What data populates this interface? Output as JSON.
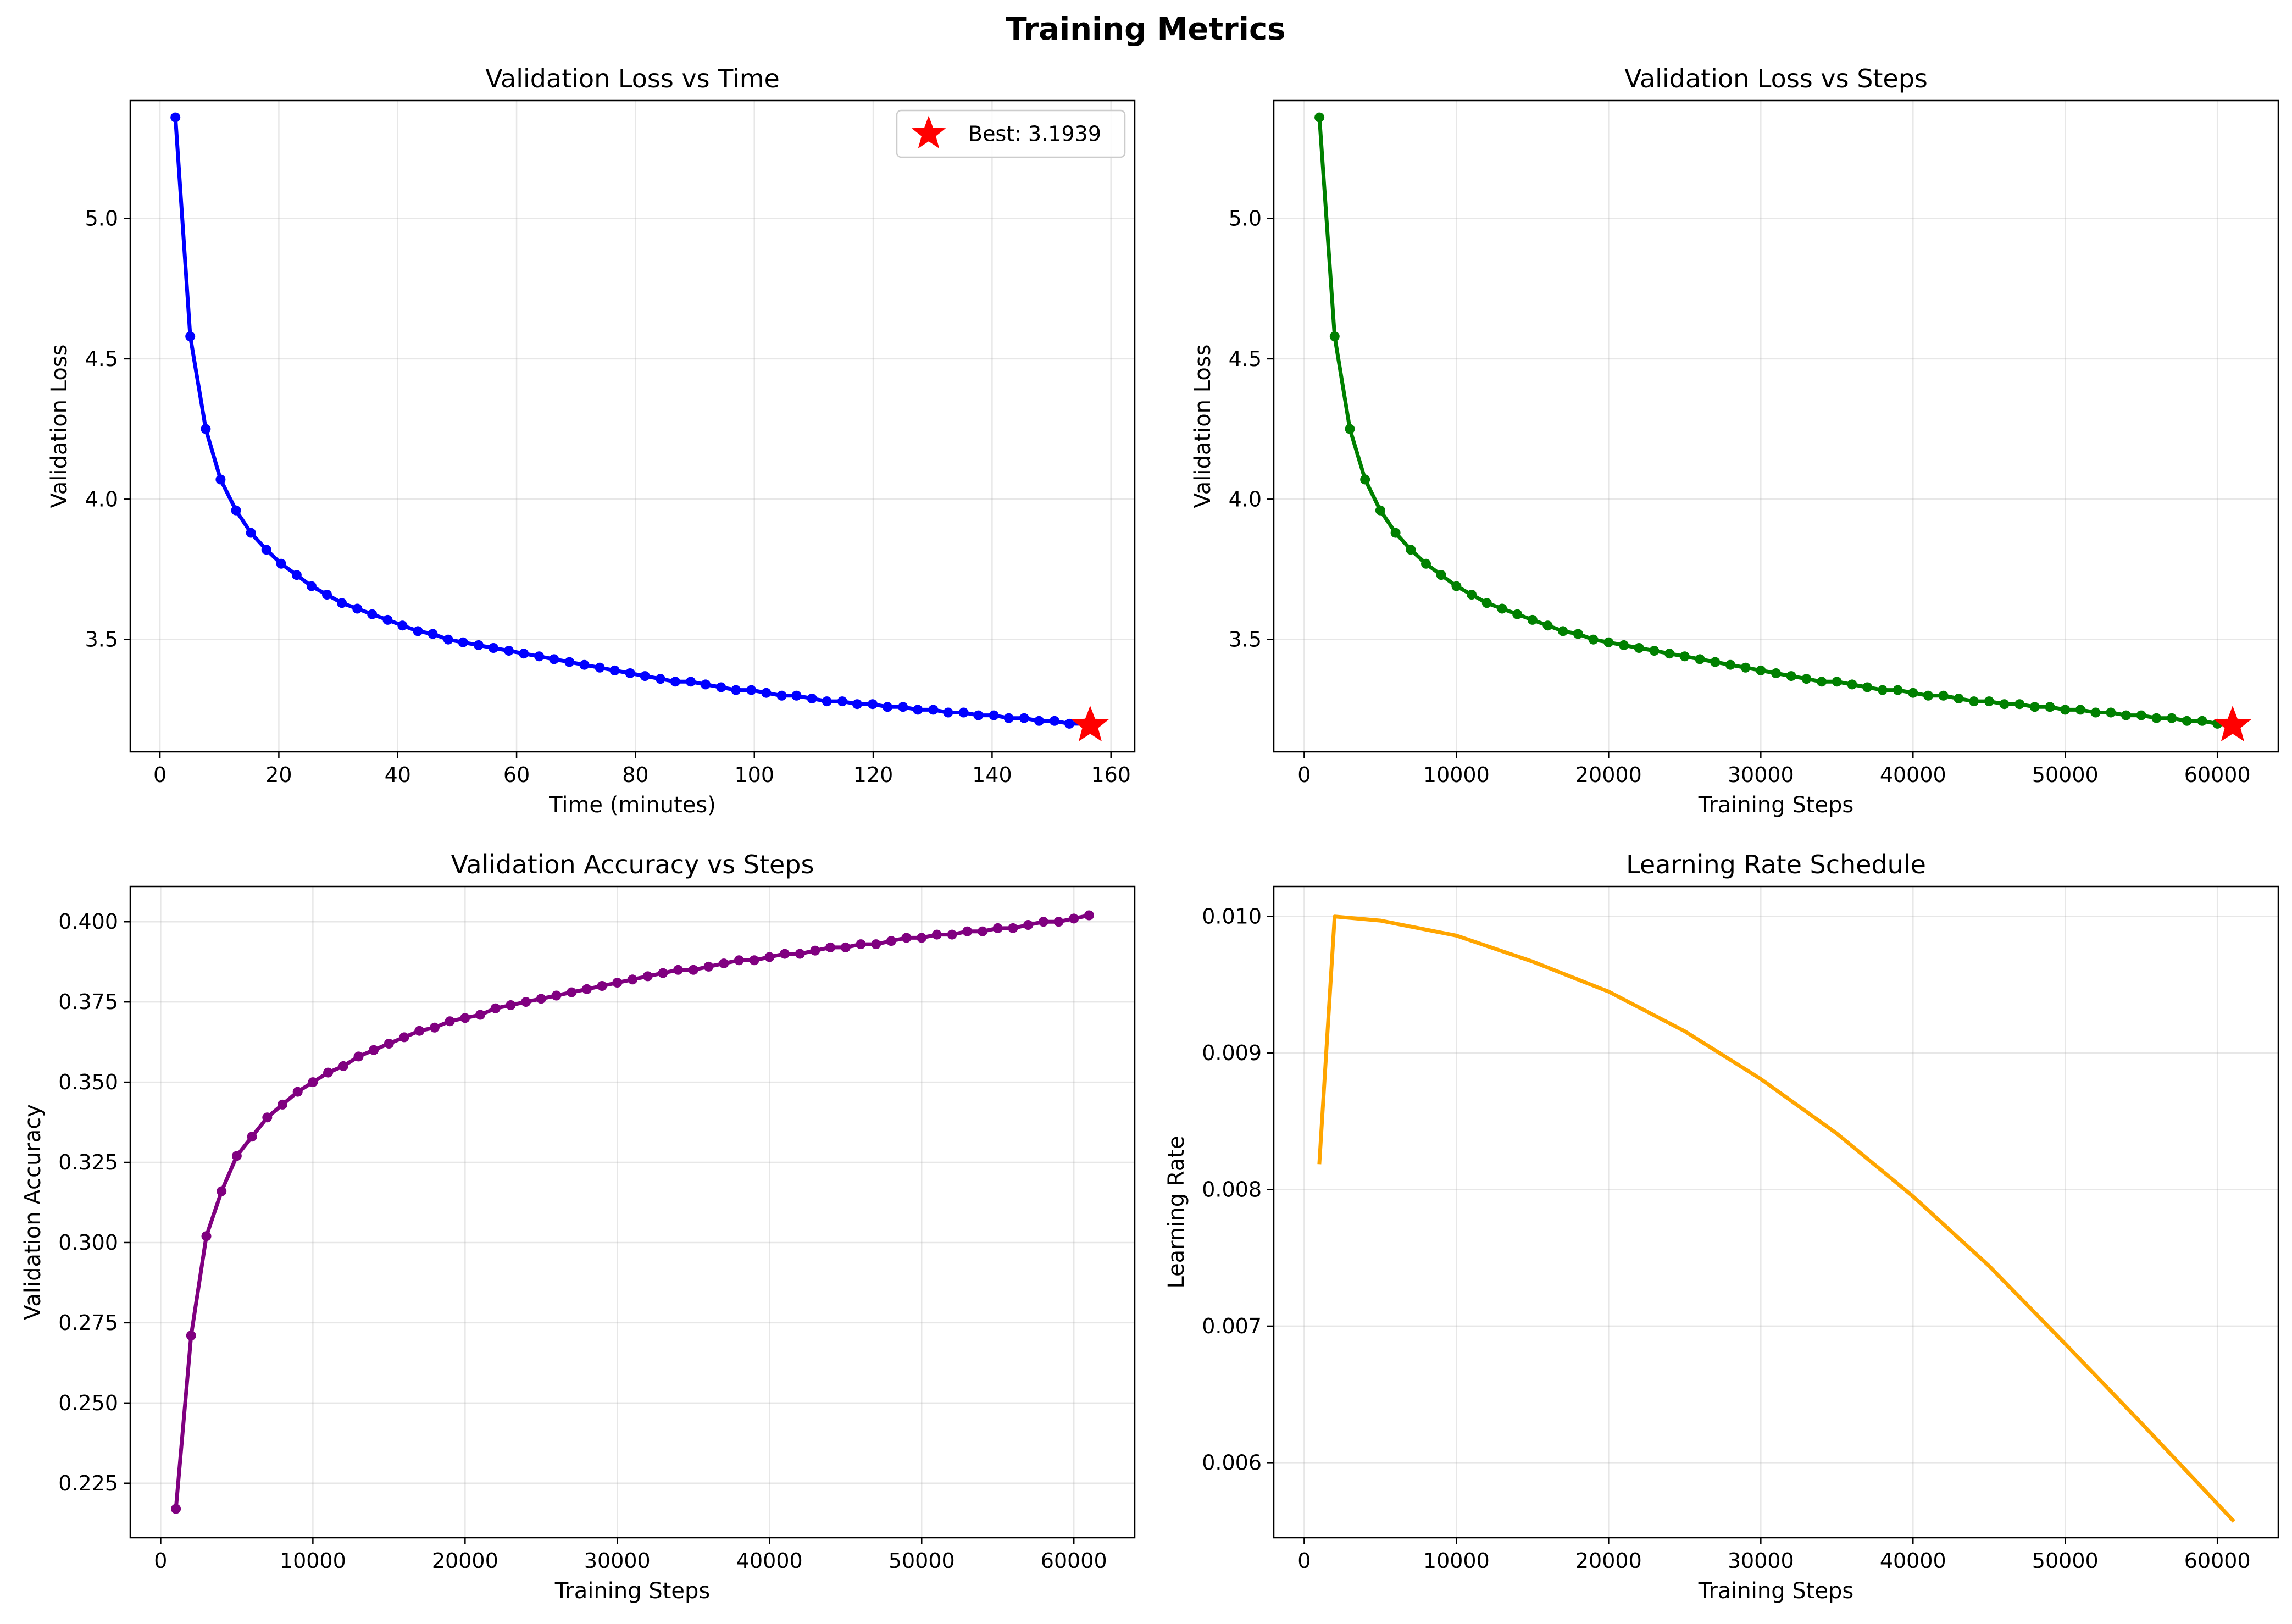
{
  "figure_title": "Training Metrics",
  "chart_data": [
    {
      "id": "loss-time",
      "type": "line",
      "title": "Validation Loss vs Time",
      "xlabel": "Time (minutes)",
      "ylabel": "Validation Loss",
      "xlim": [
        -5,
        164
      ],
      "ylim": [
        3.1,
        5.42
      ],
      "xticks": [
        0,
        20,
        40,
        60,
        80,
        100,
        120,
        140,
        160
      ],
      "yticks": [
        3.5,
        4.0,
        4.5,
        5.0
      ],
      "ytick_decimals": 1,
      "grid": true,
      "x": [
        2.6,
        5.1,
        7.7,
        10.2,
        12.8,
        15.3,
        17.9,
        20.4,
        23.0,
        25.5,
        28.1,
        30.6,
        33.2,
        35.7,
        38.3,
        40.8,
        43.4,
        45.9,
        48.5,
        51.0,
        53.6,
        56.1,
        58.7,
        61.2,
        63.8,
        66.3,
        68.9,
        71.4,
        74.0,
        76.5,
        79.1,
        81.6,
        84.2,
        86.7,
        89.3,
        91.8,
        94.4,
        96.9,
        99.5,
        102.0,
        104.6,
        107.1,
        109.7,
        112.2,
        114.8,
        117.3,
        119.9,
        122.4,
        125.0,
        127.5,
        130.1,
        132.6,
        135.2,
        137.7,
        140.3,
        142.8,
        145.4,
        147.9,
        150.5,
        153.0,
        155.6
      ],
      "series": [
        {
          "color": "#0000ff",
          "marker": "circle",
          "values": [
            5.36,
            4.58,
            4.25,
            4.07,
            3.96,
            3.88,
            3.82,
            3.77,
            3.73,
            3.69,
            3.66,
            3.63,
            3.61,
            3.59,
            3.57,
            3.55,
            3.53,
            3.52,
            3.5,
            3.49,
            3.48,
            3.47,
            3.46,
            3.45,
            3.44,
            3.43,
            3.42,
            3.41,
            3.4,
            3.39,
            3.38,
            3.37,
            3.36,
            3.35,
            3.35,
            3.34,
            3.33,
            3.32,
            3.32,
            3.31,
            3.3,
            3.3,
            3.29,
            3.28,
            3.28,
            3.27,
            3.27,
            3.26,
            3.26,
            3.25,
            3.25,
            3.24,
            3.24,
            3.23,
            3.23,
            3.22,
            3.22,
            3.21,
            3.21,
            3.2,
            3.2
          ]
        }
      ],
      "best_marker": {
        "x": 156.5,
        "y": 3.1939,
        "color": "#ff0000",
        "label": "Best: 3.1939"
      },
      "legend": {
        "position": "upper right"
      }
    },
    {
      "id": "loss-steps",
      "type": "line",
      "title": "Validation Loss vs Steps",
      "xlabel": "Training Steps",
      "ylabel": "Validation Loss",
      "xlim": [
        -2000,
        64000
      ],
      "ylim": [
        3.1,
        5.42
      ],
      "xticks": [
        0,
        10000,
        20000,
        30000,
        40000,
        50000,
        60000
      ],
      "yticks": [
        3.5,
        4.0,
        4.5,
        5.0
      ],
      "ytick_decimals": 1,
      "grid": true,
      "x": [
        1000,
        2000,
        3000,
        4000,
        5000,
        6000,
        7000,
        8000,
        9000,
        10000,
        11000,
        12000,
        13000,
        14000,
        15000,
        16000,
        17000,
        18000,
        19000,
        20000,
        21000,
        22000,
        23000,
        24000,
        25000,
        26000,
        27000,
        28000,
        29000,
        30000,
        31000,
        32000,
        33000,
        34000,
        35000,
        36000,
        37000,
        38000,
        39000,
        40000,
        41000,
        42000,
        43000,
        44000,
        45000,
        46000,
        47000,
        48000,
        49000,
        50000,
        51000,
        52000,
        53000,
        54000,
        55000,
        56000,
        57000,
        58000,
        59000,
        60000
      ],
      "series": [
        {
          "color": "#008000",
          "marker": "circle",
          "values": [
            5.36,
            4.58,
            4.25,
            4.07,
            3.96,
            3.88,
            3.82,
            3.77,
            3.73,
            3.69,
            3.66,
            3.63,
            3.61,
            3.59,
            3.57,
            3.55,
            3.53,
            3.52,
            3.5,
            3.49,
            3.48,
            3.47,
            3.46,
            3.45,
            3.44,
            3.43,
            3.42,
            3.41,
            3.4,
            3.39,
            3.38,
            3.37,
            3.36,
            3.35,
            3.35,
            3.34,
            3.33,
            3.32,
            3.32,
            3.31,
            3.3,
            3.3,
            3.29,
            3.28,
            3.28,
            3.27,
            3.27,
            3.26,
            3.26,
            3.25,
            3.25,
            3.24,
            3.24,
            3.23,
            3.23,
            3.22,
            3.22,
            3.21,
            3.21,
            3.2
          ]
        }
      ],
      "best_marker": {
        "x": 61000,
        "y": 3.1939,
        "color": "#ff0000"
      }
    },
    {
      "id": "accuracy-steps",
      "type": "line",
      "title": "Validation Accuracy vs Steps",
      "xlabel": "Training Steps",
      "ylabel": "Validation Accuracy",
      "xlim": [
        -2000,
        64000
      ],
      "ylim": [
        0.208,
        0.411
      ],
      "xticks": [
        0,
        10000,
        20000,
        30000,
        40000,
        50000,
        60000
      ],
      "yticks": [
        0.225,
        0.25,
        0.275,
        0.3,
        0.325,
        0.35,
        0.375,
        0.4
      ],
      "ytick_decimals": 3,
      "grid": true,
      "x": [
        1000,
        2000,
        3000,
        4000,
        5000,
        6000,
        7000,
        8000,
        9000,
        10000,
        11000,
        12000,
        13000,
        14000,
        15000,
        16000,
        17000,
        18000,
        19000,
        20000,
        21000,
        22000,
        23000,
        24000,
        25000,
        26000,
        27000,
        28000,
        29000,
        30000,
        31000,
        32000,
        33000,
        34000,
        35000,
        36000,
        37000,
        38000,
        39000,
        40000,
        41000,
        42000,
        43000,
        44000,
        45000,
        46000,
        47000,
        48000,
        49000,
        50000,
        51000,
        52000,
        53000,
        54000,
        55000,
        56000,
        57000,
        58000,
        59000,
        60000,
        61000
      ],
      "series": [
        {
          "color": "#800080",
          "marker": "circle",
          "values": [
            0.217,
            0.271,
            0.302,
            0.316,
            0.327,
            0.333,
            0.339,
            0.343,
            0.347,
            0.35,
            0.353,
            0.355,
            0.358,
            0.36,
            0.362,
            0.364,
            0.366,
            0.367,
            0.369,
            0.37,
            0.371,
            0.373,
            0.374,
            0.375,
            0.376,
            0.377,
            0.378,
            0.379,
            0.38,
            0.381,
            0.382,
            0.383,
            0.384,
            0.385,
            0.385,
            0.386,
            0.387,
            0.388,
            0.388,
            0.389,
            0.39,
            0.39,
            0.391,
            0.392,
            0.392,
            0.393,
            0.393,
            0.394,
            0.395,
            0.395,
            0.396,
            0.396,
            0.397,
            0.397,
            0.398,
            0.398,
            0.399,
            0.4,
            0.4,
            0.401,
            0.402
          ]
        }
      ]
    },
    {
      "id": "learning-rate",
      "type": "line",
      "title": "Learning Rate Schedule",
      "xlabel": "Training Steps",
      "ylabel": "Learning Rate",
      "xlim": [
        -2000,
        64000
      ],
      "ylim": [
        0.00545,
        0.01022
      ],
      "xticks": [
        0,
        10000,
        20000,
        30000,
        40000,
        50000,
        60000
      ],
      "yticks": [
        0.006,
        0.007,
        0.008,
        0.009,
        0.01
      ],
      "ytick_decimals": 3,
      "grid": true,
      "x": [
        1000,
        2000,
        5000,
        10000,
        15000,
        20000,
        25000,
        30000,
        35000,
        40000,
        45000,
        50000,
        55000,
        61000
      ],
      "series": [
        {
          "color": "#ffa500",
          "marker": "none",
          "values": [
            0.0082,
            0.01,
            0.00997,
            0.00986,
            0.00967,
            0.00945,
            0.00916,
            0.00881,
            0.00841,
            0.00795,
            0.00744,
            0.00687,
            0.00629,
            0.00558
          ]
        }
      ]
    }
  ]
}
